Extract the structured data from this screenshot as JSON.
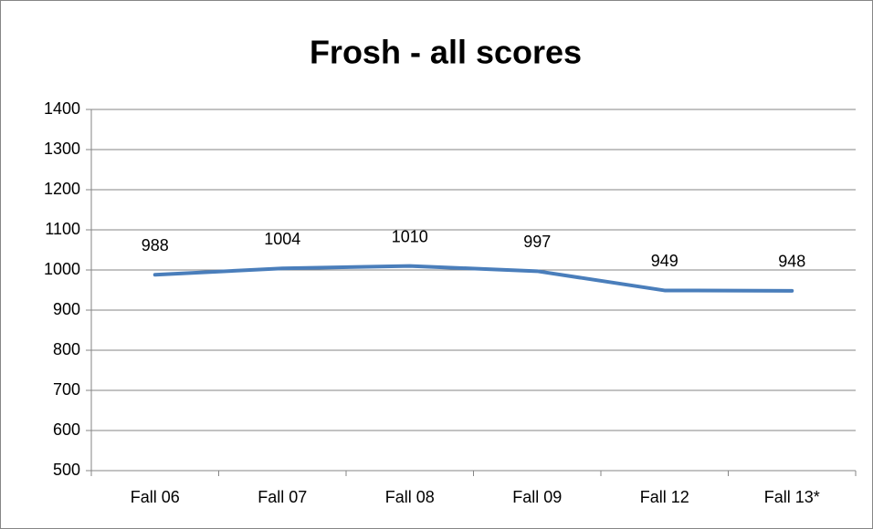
{
  "chart_data": {
    "type": "line",
    "title": "Frosh - all scores",
    "categories": [
      "Fall 06",
      "Fall 07",
      "Fall 08",
      "Fall 09",
      "Fall 12",
      "Fall 13*"
    ],
    "values": [
      988,
      1004,
      1010,
      997,
      949,
      948
    ],
    "color": "#4a7ebb",
    "ylim": [
      500,
      1400
    ],
    "yticks": [
      500,
      600,
      700,
      800,
      900,
      1000,
      1100,
      1200,
      1300,
      1400
    ],
    "grid": true
  }
}
